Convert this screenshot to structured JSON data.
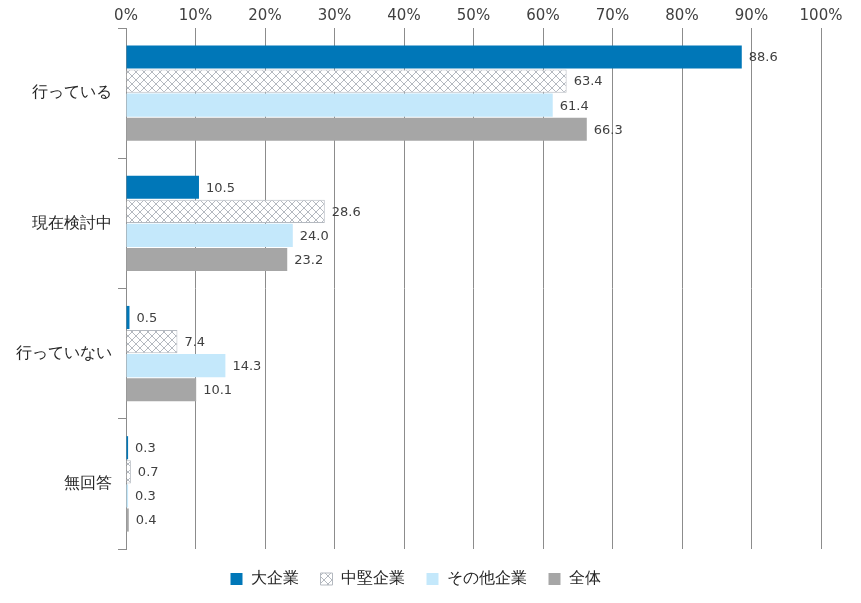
{
  "chart_data": {
    "type": "bar",
    "orientation": "horizontal",
    "categories": [
      "行っている",
      "現在検討中",
      "行っていない",
      "無回答"
    ],
    "series": [
      {
        "name": "大企業",
        "color": "#0077b8",
        "values": [
          88.6,
          10.5,
          0.5,
          0.3
        ]
      },
      {
        "name": "中堅企業",
        "color": "#b4b9c0",
        "marker": "crosshatch",
        "values": [
          63.4,
          28.6,
          7.4,
          0.7
        ]
      },
      {
        "name": "その他企業",
        "color": "#c4e8fb",
        "values": [
          61.4,
          24.0,
          14.3,
          0.3
        ],
        "value_labels": [
          "61.4",
          "24.0",
          "14.3",
          "0.3"
        ]
      },
      {
        "name": "全体",
        "color": "#a6a6a6",
        "values": [
          66.3,
          23.2,
          10.1,
          0.4
        ]
      }
    ],
    "xlim": [
      0,
      100
    ],
    "xticks": [
      {
        "value": 0,
        "label": "0%"
      },
      {
        "value": 10,
        "label": "10%"
      },
      {
        "value": 20,
        "label": "20%"
      },
      {
        "value": 30,
        "label": "30%"
      },
      {
        "value": 40,
        "label": "40%"
      },
      {
        "value": 50,
        "label": "50%"
      },
      {
        "value": 60,
        "label": "60%"
      },
      {
        "value": 70,
        "label": "70%"
      },
      {
        "value": 80,
        "label": "80%"
      },
      {
        "value": 90,
        "label": "90%"
      },
      {
        "value": 100,
        "label": "100%"
      }
    ],
    "grid": true,
    "legend": "bottom",
    "data_labels": true
  }
}
